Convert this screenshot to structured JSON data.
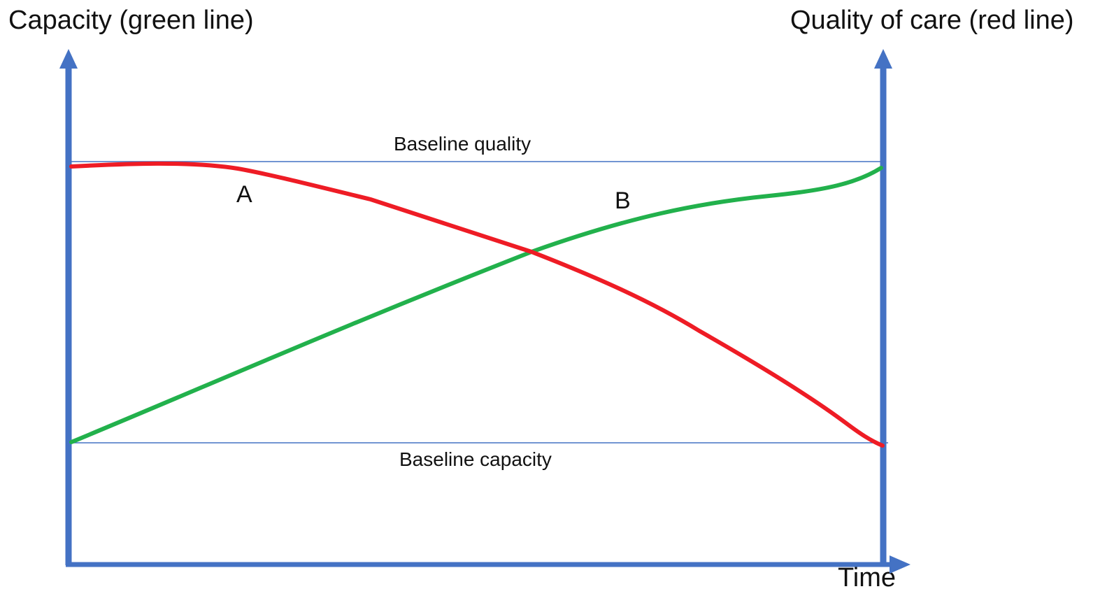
{
  "diagram": {
    "left_axis_title": "Capacity (green line)",
    "right_axis_title": "Quality of care (red line)",
    "x_axis_title": "Time",
    "baseline_quality_label": "Baseline quality",
    "baseline_capacity_label": "Baseline capacity",
    "point_a_label": "A",
    "point_b_label": "B"
  },
  "colors": {
    "axis": "#4472C4",
    "baseline": "#4472C4",
    "capacity_line": "#22B14C",
    "quality_line": "#EE1C25"
  }
}
